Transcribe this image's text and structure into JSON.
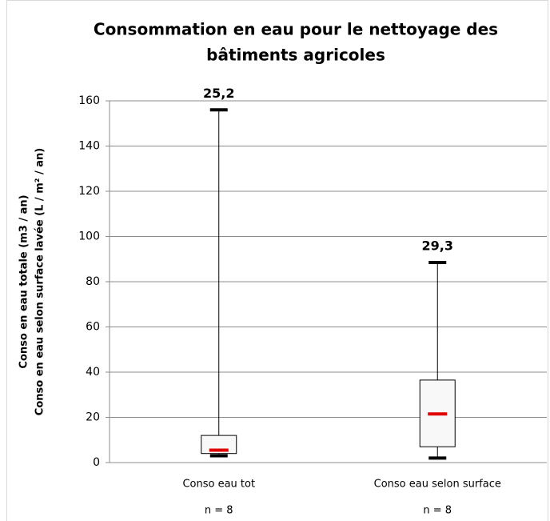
{
  "chart_data": {
    "type": "box",
    "title": [
      "Consommation en eau pour le nettoyage des",
      "bâtiments agricoles"
    ],
    "y_label": [
      "Conso en eau totale (m3 / an)",
      "Conso en eau selon surface lavée (L / m² / an)"
    ],
    "categories": [
      "Conso eau tot",
      "Conso eau selon surface"
    ],
    "sample_sizes": [
      "n = 8",
      "n = 8"
    ],
    "annotations": [
      "25,2",
      "29,3"
    ],
    "boxes": [
      {
        "min": 3,
        "q1": 4,
        "median": 5.5,
        "q3": 12,
        "max": 156
      },
      {
        "min": 2,
        "q1": 7,
        "median": 21.5,
        "q3": 36.5,
        "max": 88.5
      }
    ],
    "median_color": "#e00000",
    "box_color": "#f8f8f8",
    "ylim": [
      0,
      160
    ],
    "yticks": [
      0,
      20,
      40,
      60,
      80,
      100,
      120,
      140,
      160
    ],
    "grid": true
  }
}
